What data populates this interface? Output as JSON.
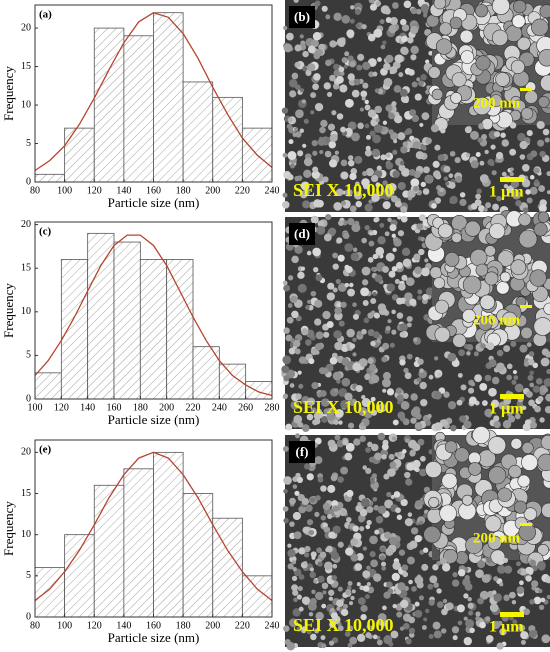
{
  "chart_data": [
    {
      "type": "histogram",
      "panel": "(a)",
      "xlabel": "Particle size (nm)",
      "ylabel": "Frequency",
      "bins": [
        80,
        100,
        120,
        140,
        160,
        180,
        200,
        220,
        240
      ],
      "values": [
        1,
        7,
        20,
        19,
        22,
        13,
        11,
        7
      ],
      "xlim": [
        80,
        240
      ],
      "xticks": [
        80,
        100,
        120,
        140,
        160,
        180,
        200,
        220,
        240
      ],
      "ylim": [
        0,
        23
      ],
      "yticks": [
        0,
        5,
        10,
        15,
        20
      ],
      "color": "#ffffff",
      "hatch_color": "#8a8a8a",
      "fit": {
        "color": "#b5452f",
        "x": [
          80,
          90,
          100,
          110,
          120,
          130,
          140,
          150,
          160,
          170,
          180,
          190,
          200,
          210,
          220,
          230,
          240
        ],
        "y": [
          1.5,
          2.8,
          4.7,
          7.5,
          10.9,
          14.6,
          18.1,
          20.8,
          22.0,
          21.4,
          19.3,
          16.1,
          12.3,
          8.8,
          5.7,
          3.5,
          1.9
        ]
      }
    },
    {
      "type": "histogram",
      "panel": "(c)",
      "xlabel": "Particle size (nm)",
      "ylabel": "Frequency",
      "bins": [
        100,
        120,
        140,
        160,
        180,
        200,
        220,
        240,
        260,
        280
      ],
      "values": [
        3,
        16,
        19,
        18,
        16,
        16,
        6,
        4,
        2
      ],
      "xlim": [
        100,
        280
      ],
      "xticks": [
        100,
        120,
        140,
        160,
        180,
        200,
        220,
        240,
        260,
        280
      ],
      "ylim": [
        0,
        20.3
      ],
      "yticks": [
        0,
        5,
        10,
        15,
        20
      ],
      "color": "#ffffff",
      "hatch_color": "#8a8a8a",
      "fit": {
        "color": "#b5452f",
        "x": [
          100,
          110,
          120,
          130,
          140,
          150,
          160,
          170,
          180,
          190,
          200,
          210,
          220,
          230,
          240,
          250,
          260,
          270,
          280
        ],
        "y": [
          2.7,
          4.4,
          6.7,
          9.4,
          12.4,
          15.3,
          17.6,
          18.8,
          18.8,
          17.6,
          15.3,
          12.4,
          9.4,
          6.7,
          4.4,
          2.7,
          1.6,
          0.8,
          0.4
        ]
      }
    },
    {
      "type": "histogram",
      "panel": "(e)",
      "xlabel": "Particle size (nm)",
      "ylabel": "Frequency",
      "bins": [
        80,
        100,
        120,
        140,
        160,
        180,
        200,
        220,
        240
      ],
      "values": [
        6,
        10,
        16,
        18,
        20,
        15,
        12,
        5
      ],
      "xlim": [
        80,
        240
      ],
      "xticks": [
        80,
        100,
        120,
        140,
        160,
        180,
        200,
        220,
        240
      ],
      "ylim": [
        0,
        21.5
      ],
      "yticks": [
        0,
        5,
        10,
        15,
        20
      ],
      "color": "#ffffff",
      "hatch_color": "#8a8a8a",
      "fit": {
        "color": "#b5452f",
        "x": [
          80,
          90,
          100,
          110,
          120,
          130,
          140,
          150,
          160,
          170,
          180,
          190,
          200,
          210,
          220,
          230,
          240
        ],
        "y": [
          2.0,
          3.4,
          5.5,
          8.1,
          11.2,
          14.5,
          17.3,
          19.3,
          20.0,
          19.3,
          17.3,
          14.5,
          11.2,
          8.1,
          5.5,
          3.4,
          2.0
        ]
      }
    }
  ],
  "micrographs": [
    {
      "panel": "(b)",
      "inset_scale": "200 nm",
      "magnification": "SEI X 10,000",
      "scale": "1 µm"
    },
    {
      "panel": "(d)",
      "inset_scale": "200 nm",
      "magnification": "SEI X 10,000",
      "scale": "1 µm"
    },
    {
      "panel": "(f)",
      "inset_scale": "200 nm",
      "magnification": "SEI X 10,000",
      "scale": "1 µm"
    }
  ]
}
